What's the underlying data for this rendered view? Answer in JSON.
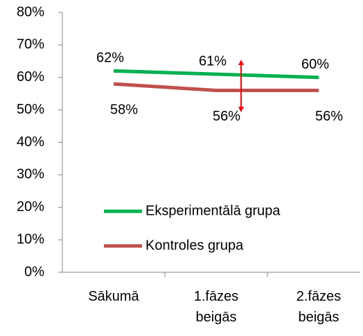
{
  "chart_data": {
    "type": "line",
    "categories": [
      "Sākumā",
      "1.fāzes beigās",
      "2.fāzes beigās"
    ],
    "series": [
      {
        "name": "Eksperimentālā grupa",
        "color": "#00b050",
        "values": [
          62,
          61,
          60
        ],
        "value_labels": [
          "62%",
          "61%",
          "60%"
        ]
      },
      {
        "name": "Kontroles grupa",
        "color": "#c0504d",
        "values": [
          58,
          56,
          56
        ],
        "value_labels": [
          "58%",
          "56%",
          "56%"
        ]
      }
    ],
    "ylim": [
      0,
      80
    ],
    "yticks": [
      {
        "value": 0,
        "label": "0%"
      },
      {
        "value": 10,
        "label": "10%"
      },
      {
        "value": 20,
        "label": "20%"
      },
      {
        "value": 30,
        "label": "30%"
      },
      {
        "value": 40,
        "label": "40%"
      },
      {
        "value": 50,
        "label": "50%"
      },
      {
        "value": 60,
        "label": "60%"
      },
      {
        "value": 70,
        "label": "70%"
      },
      {
        "value": 80,
        "label": "80%"
      }
    ],
    "legend": "lower center",
    "grid": false
  }
}
